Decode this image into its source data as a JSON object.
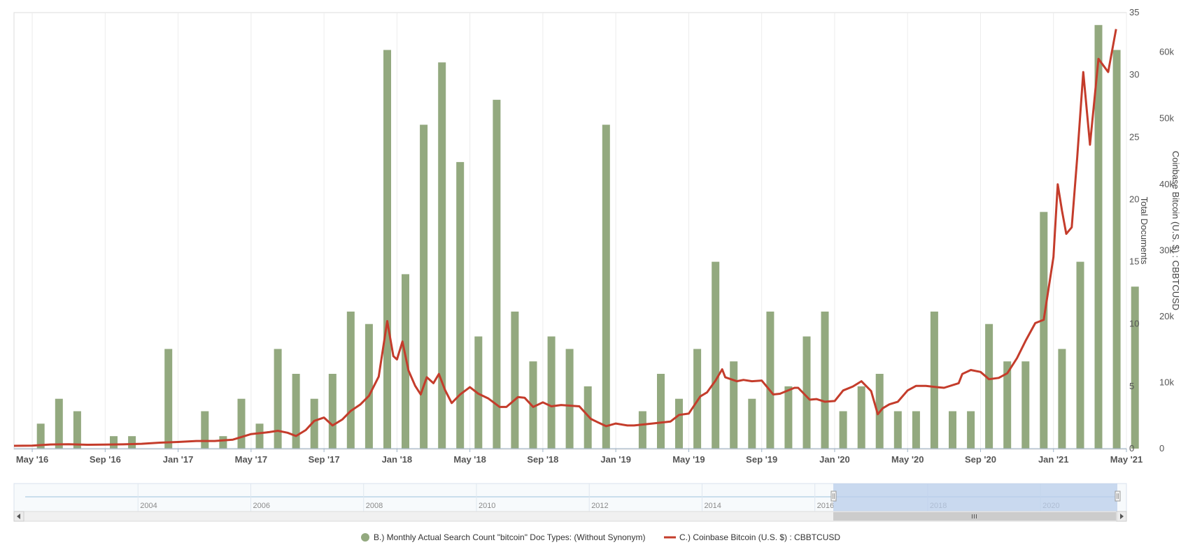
{
  "chart_data": {
    "type": "bar+line",
    "x_axis": {
      "ticks": [
        "May '16",
        "Sep '16",
        "Jan '17",
        "May '17",
        "Sep '17",
        "Jan '18",
        "May '18",
        "Sep '18",
        "Jan '19",
        "May '19",
        "Sep '19",
        "Jan '20",
        "May '20",
        "Sep '20",
        "Jan '21",
        "May '21"
      ],
      "range": [
        "2016-04",
        "2021-05"
      ]
    },
    "y_left_axis": {
      "title": "Total Documents",
      "ylim": [
        0,
        35
      ],
      "ticks": [
        "0",
        "5",
        "10",
        "15",
        "20",
        "25",
        "30",
        "35"
      ]
    },
    "y_right_axis": {
      "title": "Coinbase Bitcoin (U.S. $) : CBBTCUSD",
      "ylim": [
        0,
        66000
      ],
      "ticks": [
        "0",
        "10k",
        "20k",
        "30k",
        "40k",
        "50k",
        "60k"
      ]
    },
    "series": [
      {
        "name": "B.) Monthly Actual Search Count \"bitcoin\" Doc Types: (Without Synonym)",
        "type": "bar",
        "color": "#93a97f",
        "points": [
          [
            "2016-05",
            2
          ],
          [
            "2016-06",
            4
          ],
          [
            "2016-07",
            3
          ],
          [
            "2016-09",
            1
          ],
          [
            "2016-10",
            1
          ],
          [
            "2016-12",
            8
          ],
          [
            "2017-02",
            3
          ],
          [
            "2017-03",
            1
          ],
          [
            "2017-04",
            4
          ],
          [
            "2017-05",
            2
          ],
          [
            "2017-06",
            8
          ],
          [
            "2017-07",
            6
          ],
          [
            "2017-08",
            4
          ],
          [
            "2017-09",
            6
          ],
          [
            "2017-10",
            11
          ],
          [
            "2017-11",
            10
          ],
          [
            "2017-12",
            32
          ],
          [
            "2018-01",
            14
          ],
          [
            "2018-02",
            26
          ],
          [
            "2018-03",
            31
          ],
          [
            "2018-04",
            23
          ],
          [
            "2018-05",
            9
          ],
          [
            "2018-06",
            28
          ],
          [
            "2018-07",
            11
          ],
          [
            "2018-08",
            7
          ],
          [
            "2018-09",
            9
          ],
          [
            "2018-10",
            8
          ],
          [
            "2018-11",
            5
          ],
          [
            "2018-12",
            26
          ],
          [
            "2019-02",
            3
          ],
          [
            "2019-03",
            6
          ],
          [
            "2019-04",
            4
          ],
          [
            "2019-05",
            8
          ],
          [
            "2019-06",
            15
          ],
          [
            "2019-07",
            7
          ],
          [
            "2019-08",
            4
          ],
          [
            "2019-09",
            11
          ],
          [
            "2019-10",
            5
          ],
          [
            "2019-11",
            9
          ],
          [
            "2019-12",
            11
          ],
          [
            "2020-01",
            3
          ],
          [
            "2020-02",
            5
          ],
          [
            "2020-03",
            6
          ],
          [
            "2020-04",
            3
          ],
          [
            "2020-05",
            3
          ],
          [
            "2020-06",
            11
          ],
          [
            "2020-07",
            3
          ],
          [
            "2020-08",
            3
          ],
          [
            "2020-09",
            10
          ],
          [
            "2020-10",
            7
          ],
          [
            "2020-11",
            7
          ],
          [
            "2020-12",
            19
          ],
          [
            "2021-01",
            8
          ],
          [
            "2021-02",
            15
          ],
          [
            "2021-03",
            34
          ],
          [
            "2021-04",
            32
          ],
          [
            "2021-05",
            13
          ]
        ]
      },
      {
        "name": "C.) Coinbase Bitcoin (U.S. $) : CBBTCUSD",
        "type": "line",
        "color": "#c43c2b",
        "points": [
          [
            "2016-04-01",
            420
          ],
          [
            "2016-05-01",
            450
          ],
          [
            "2016-06-01",
            620
          ],
          [
            "2016-07-01",
            660
          ],
          [
            "2016-08-01",
            580
          ],
          [
            "2016-09-01",
            600
          ],
          [
            "2016-10-01",
            640
          ],
          [
            "2016-11-01",
            730
          ],
          [
            "2016-12-01",
            900
          ],
          [
            "2017-01-01",
            1000
          ],
          [
            "2017-02-01",
            1150
          ],
          [
            "2017-03-01",
            1150
          ],
          [
            "2017-04-01",
            1350
          ],
          [
            "2017-05-01",
            2200
          ],
          [
            "2017-06-01",
            2500
          ],
          [
            "2017-06-15",
            2700
          ],
          [
            "2017-07-01",
            2400
          ],
          [
            "2017-07-15",
            1900
          ],
          [
            "2017-08-01",
            2800
          ],
          [
            "2017-08-15",
            4200
          ],
          [
            "2017-09-01",
            4700
          ],
          [
            "2017-09-15",
            3500
          ],
          [
            "2017-10-01",
            4400
          ],
          [
            "2017-10-15",
            5700
          ],
          [
            "2017-11-01",
            6700
          ],
          [
            "2017-11-15",
            8000
          ],
          [
            "2017-12-01",
            10900
          ],
          [
            "2017-12-15",
            19300
          ],
          [
            "2017-12-25",
            14000
          ],
          [
            "2018-01-01",
            13500
          ],
          [
            "2018-01-10",
            16200
          ],
          [
            "2018-01-20",
            11800
          ],
          [
            "2018-02-01",
            9500
          ],
          [
            "2018-02-10",
            8200
          ],
          [
            "2018-02-20",
            10800
          ],
          [
            "2018-03-01",
            9900
          ],
          [
            "2018-03-10",
            11300
          ],
          [
            "2018-03-20",
            8900
          ],
          [
            "2018-04-01",
            6900
          ],
          [
            "2018-04-15",
            8200
          ],
          [
            "2018-05-01",
            9300
          ],
          [
            "2018-05-15",
            8300
          ],
          [
            "2018-06-01",
            7600
          ],
          [
            "2018-06-20",
            6300
          ],
          [
            "2018-07-01",
            6300
          ],
          [
            "2018-07-20",
            7800
          ],
          [
            "2018-08-01",
            7700
          ],
          [
            "2018-08-15",
            6300
          ],
          [
            "2018-09-01",
            7000
          ],
          [
            "2018-09-15",
            6400
          ],
          [
            "2018-10-01",
            6600
          ],
          [
            "2018-11-01",
            6400
          ],
          [
            "2018-11-20",
            4500
          ],
          [
            "2018-12-01",
            4000
          ],
          [
            "2018-12-15",
            3400
          ],
          [
            "2019-01-01",
            3800
          ],
          [
            "2019-01-20",
            3500
          ],
          [
            "2019-02-01",
            3500
          ],
          [
            "2019-03-01",
            3800
          ],
          [
            "2019-04-01",
            4100
          ],
          [
            "2019-04-15",
            5100
          ],
          [
            "2019-05-01",
            5300
          ],
          [
            "2019-05-20",
            7900
          ],
          [
            "2019-06-01",
            8500
          ],
          [
            "2019-06-15",
            10300
          ],
          [
            "2019-06-26",
            12000
          ],
          [
            "2019-07-01",
            10800
          ],
          [
            "2019-07-20",
            10200
          ],
          [
            "2019-08-01",
            10400
          ],
          [
            "2019-08-15",
            10200
          ],
          [
            "2019-09-01",
            10300
          ],
          [
            "2019-09-20",
            8200
          ],
          [
            "2019-10-01",
            8300
          ],
          [
            "2019-10-25",
            9200
          ],
          [
            "2019-11-01",
            9200
          ],
          [
            "2019-11-20",
            7400
          ],
          [
            "2019-12-01",
            7500
          ],
          [
            "2019-12-15",
            7100
          ],
          [
            "2020-01-01",
            7200
          ],
          [
            "2020-01-15",
            8800
          ],
          [
            "2020-02-01",
            9400
          ],
          [
            "2020-02-15",
            10200
          ],
          [
            "2020-03-01",
            8700
          ],
          [
            "2020-03-12",
            5200
          ],
          [
            "2020-03-20",
            6100
          ],
          [
            "2020-04-01",
            6700
          ],
          [
            "2020-04-15",
            7100
          ],
          [
            "2020-05-01",
            8800
          ],
          [
            "2020-05-15",
            9500
          ],
          [
            "2020-06-01",
            9500
          ],
          [
            "2020-06-20",
            9300
          ],
          [
            "2020-07-01",
            9200
          ],
          [
            "2020-07-25",
            9900
          ],
          [
            "2020-08-01",
            11300
          ],
          [
            "2020-08-15",
            11900
          ],
          [
            "2020-09-01",
            11600
          ],
          [
            "2020-09-15",
            10500
          ],
          [
            "2020-10-01",
            10700
          ],
          [
            "2020-10-15",
            11400
          ],
          [
            "2020-11-01",
            13700
          ],
          [
            "2020-11-15",
            16300
          ],
          [
            "2020-12-01",
            19000
          ],
          [
            "2020-12-15",
            19500
          ],
          [
            "2021-01-01",
            29000
          ],
          [
            "2021-01-08",
            40000
          ],
          [
            "2021-01-15",
            36000
          ],
          [
            "2021-01-22",
            32500
          ],
          [
            "2021-02-01",
            33500
          ],
          [
            "2021-02-10",
            44000
          ],
          [
            "2021-02-20",
            57000
          ],
          [
            "2021-03-01",
            46000
          ],
          [
            "2021-03-15",
            59000
          ],
          [
            "2021-04-01",
            57000
          ],
          [
            "2021-04-14",
            63500
          ]
        ]
      }
    ],
    "navigator": {
      "labels": [
        "2004",
        "2006",
        "2008",
        "2010",
        "2012",
        "2014",
        "2016",
        "2018",
        "2020"
      ]
    },
    "legend": {
      "placement": "bottom-center",
      "items": [
        {
          "label": "B.) Monthly Actual Search Count \"bitcoin\" Doc Types: (Without Synonym)",
          "color": "#93a97f",
          "marker": "circle"
        },
        {
          "label": "C.) Coinbase Bitcoin (U.S. $) : CBBTCUSD",
          "color": "#c43c2b",
          "marker": "line"
        }
      ]
    },
    "grid": {
      "vertical": true,
      "horizontal": false
    }
  }
}
